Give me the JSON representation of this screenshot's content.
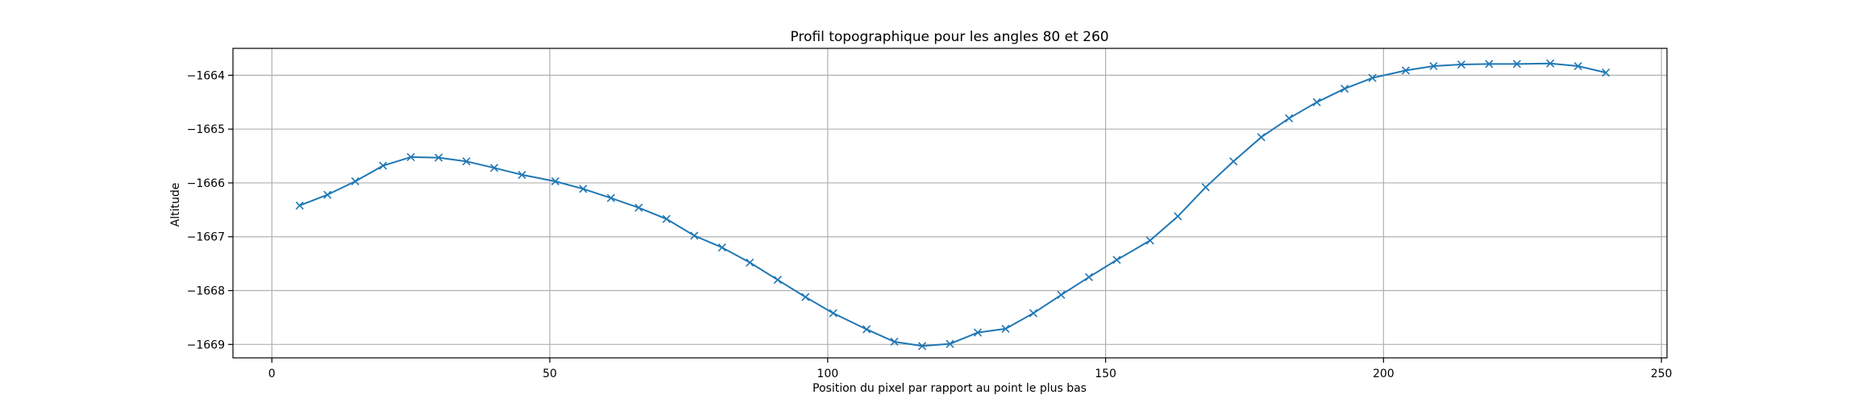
{
  "chart_data": {
    "type": "line",
    "title": "Profil topographique pour les angles 80 et 260",
    "xlabel": "Position du pixel par rapport au point le plus bas",
    "ylabel": "Altitude",
    "xlim": [
      -7,
      251
    ],
    "ylim": [
      -1669.25,
      -1663.5
    ],
    "xticks": [
      0,
      50,
      100,
      150,
      200,
      250
    ],
    "yticks": [
      -1664,
      -1665,
      -1666,
      -1667,
      -1668,
      -1669
    ],
    "grid": true,
    "marker": "x",
    "color": "#1f77b4",
    "x": [
      5,
      10,
      15,
      20,
      25,
      30,
      35,
      40,
      45,
      51,
      56,
      61,
      66,
      71,
      76,
      81,
      86,
      91,
      96,
      101,
      107,
      112,
      117,
      122,
      127,
      132,
      137,
      142,
      147,
      152,
      158,
      163,
      168,
      173,
      178,
      183,
      188,
      193,
      198,
      204,
      209,
      214,
      219,
      224,
      230,
      235,
      240
    ],
    "y": [
      -1666.42,
      -1666.22,
      -1665.97,
      -1665.68,
      -1665.52,
      -1665.53,
      -1665.6,
      -1665.72,
      -1665.85,
      -1665.97,
      -1666.11,
      -1666.28,
      -1666.46,
      -1666.67,
      -1666.98,
      -1667.2,
      -1667.48,
      -1667.8,
      -1668.12,
      -1668.42,
      -1668.72,
      -1668.95,
      -1669.03,
      -1668.99,
      -1668.78,
      -1668.71,
      -1668.42,
      -1668.08,
      -1667.75,
      -1667.43,
      -1667.07,
      -1666.62,
      -1666.08,
      -1665.6,
      -1665.15,
      -1664.8,
      -1664.5,
      -1664.25,
      -1664.05,
      -1663.91,
      -1663.83,
      -1663.8,
      -1663.79,
      -1663.79,
      -1663.78,
      -1663.83,
      -1663.95
    ]
  }
}
